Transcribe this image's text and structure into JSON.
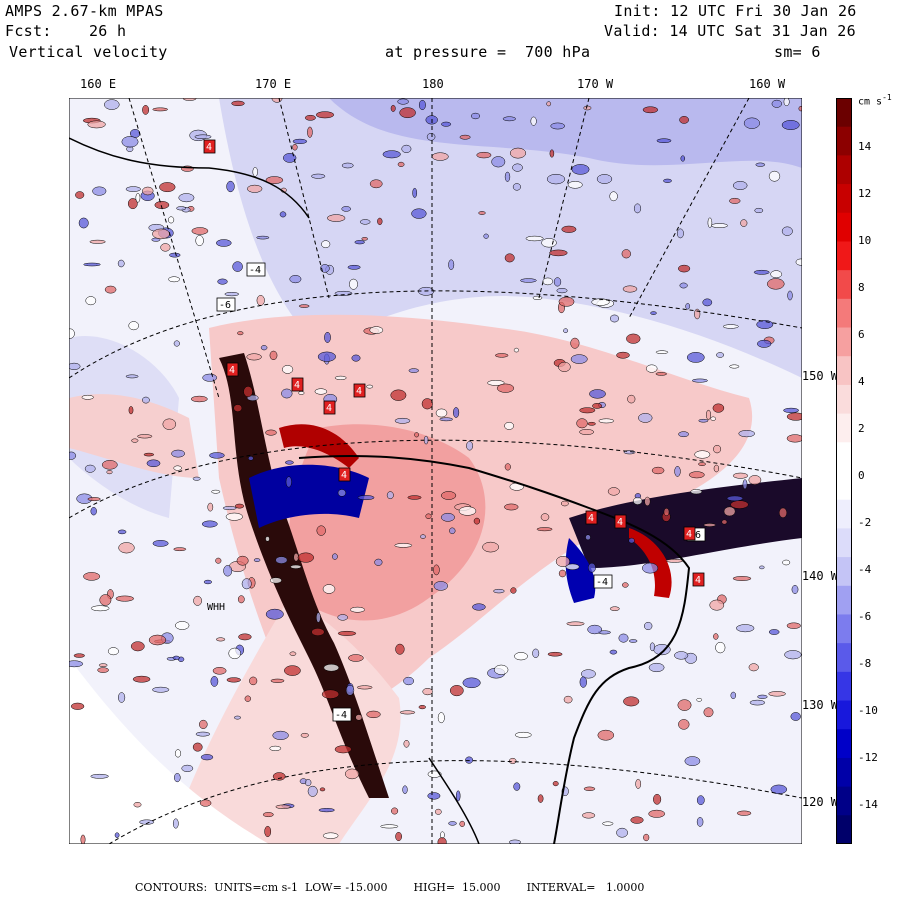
{
  "header": {
    "model": "AMPS 2.67-km MPAS",
    "fcst": "Fcst:    26 h",
    "field": "Vertical velocity",
    "init": "Init: 12 UTC Fri 30 Jan 26",
    "valid": "Valid: 14 UTC Sat 31 Jan 26",
    "pressure": "at pressure =  700 hPa",
    "smoothing": "sm= 6"
  },
  "longitude_labels": [
    "160 E",
    "170 E",
    "180",
    "170 W",
    "160 W"
  ],
  "latitude_labels": [
    "150 W",
    "140 W",
    "130 W",
    "120 W"
  ],
  "station_label": "WHH",
  "contour_labels": [
    "4",
    "-4",
    "-6",
    "4",
    "4",
    "4",
    "4",
    "4",
    "4",
    "-4",
    "4",
    "-6",
    "4",
    "4",
    "-4"
  ],
  "colorbar": {
    "units": "cm s",
    "units_exp": "-1",
    "ticks": [
      "14",
      "12",
      "10",
      "8",
      "6",
      "4",
      "2",
      "0",
      "-2",
      "-4",
      "-6",
      "-8",
      "-10",
      "-12",
      "-14"
    ],
    "colors": [
      "#6b0000",
      "#8c0000",
      "#ad0000",
      "#c80000",
      "#e00000",
      "#f01818",
      "#f24a4a",
      "#f47a7a",
      "#f6a0a0",
      "#f8c4c4",
      "#fadcdc",
      "#fdeeee",
      "#ffffff",
      "#ffffff",
      "#eeeefd",
      "#dcdcfa",
      "#c4c4f6",
      "#a0a0f2",
      "#7c7cee",
      "#5a5aea",
      "#3636e6",
      "#1818dc",
      "#0000c8",
      "#0000a8",
      "#000088",
      "#00006a"
    ]
  },
  "footer": {
    "contours": "CONTOURS:  UNITS=cm s-1  LOW= -15.000",
    "high": "HIGH=  15.000",
    "interval": "INTERVAL=   1.0000"
  }
}
